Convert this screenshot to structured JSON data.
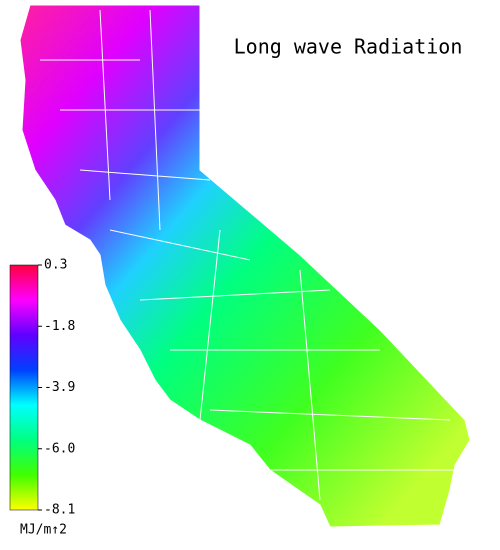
{
  "title": "Long wave Radiation",
  "colorbar": {
    "lim": [
      -8.1,
      0.3
    ],
    "ticks": [
      0.3,
      -1.8,
      -3.9,
      {
        "value": -6,
        "label": "-6.0"
      },
      -8.1
    ],
    "colors": [
      "#ff0040",
      "#ff00ff",
      "#6000ff",
      "#0040ff",
      "#00ffff",
      "#00ff80",
      "#40ff00",
      "#ffff00"
    ],
    "unit": "MJ/m↑2"
  }
}
